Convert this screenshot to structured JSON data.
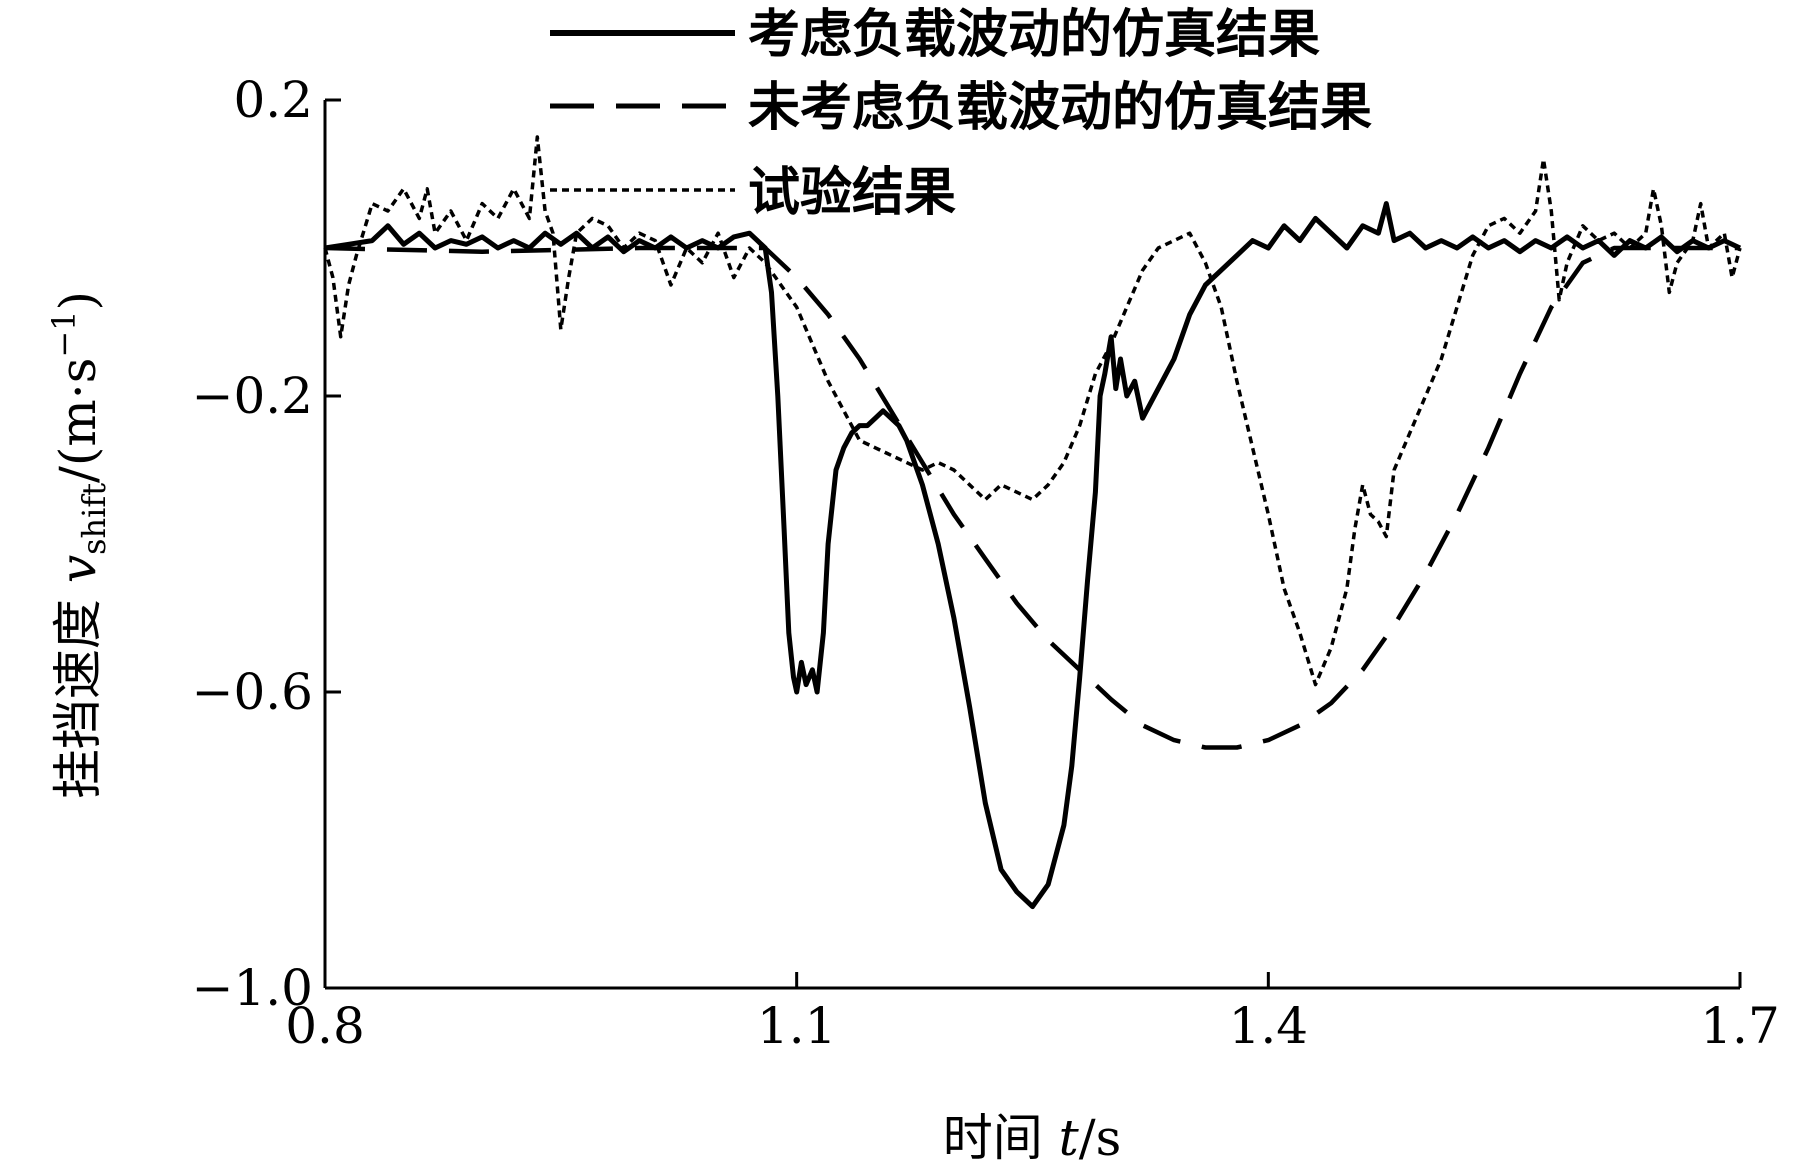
{
  "chart_data": {
    "type": "line",
    "title": "",
    "xlabel": "时间 t/s",
    "xlabel_parts": {
      "prefix": "时间 ",
      "var": "t",
      "suffix": "/s"
    },
    "ylabel": "挂挡速度 v_shift/(m·s^-1)",
    "ylabel_parts": {
      "prefix": "挂挡速度 ",
      "var": "v",
      "sub": "shift",
      "unit_open": "/(m·s",
      "sup": "−1",
      "unit_close": ")"
    },
    "xlim": [
      0.8,
      1.7
    ],
    "ylim": [
      -1.0,
      0.2
    ],
    "x_ticks": [
      0.8,
      1.1,
      1.4,
      1.7
    ],
    "x_tick_labels": [
      "0.8",
      "1.1",
      "1.4",
      "1.7"
    ],
    "y_ticks": [
      0.2,
      -0.2,
      -0.6,
      -1.0
    ],
    "y_tick_labels": [
      "0.2",
      "−0.2",
      "−0.6",
      "−1.0"
    ],
    "legend_placement": "top-center",
    "series": [
      {
        "name": "考虑负载波动的仿真结果",
        "style": "solid",
        "points": [
          [
            0.8,
            0.0
          ],
          [
            0.815,
            0.005
          ],
          [
            0.83,
            0.01
          ],
          [
            0.84,
            0.03
          ],
          [
            0.85,
            0.005
          ],
          [
            0.86,
            0.02
          ],
          [
            0.87,
            0.0
          ],
          [
            0.88,
            0.01
          ],
          [
            0.89,
            0.005
          ],
          [
            0.9,
            0.015
          ],
          [
            0.91,
            0.0
          ],
          [
            0.92,
            0.01
          ],
          [
            0.93,
            0.0
          ],
          [
            0.94,
            0.02
          ],
          [
            0.95,
            0.005
          ],
          [
            0.96,
            0.02
          ],
          [
            0.97,
            0.0
          ],
          [
            0.98,
            0.015
          ],
          [
            0.99,
            -0.005
          ],
          [
            1.0,
            0.01
          ],
          [
            1.01,
            0.0
          ],
          [
            1.02,
            0.015
          ],
          [
            1.03,
            0.0
          ],
          [
            1.04,
            0.01
          ],
          [
            1.05,
            0.0
          ],
          [
            1.06,
            0.015
          ],
          [
            1.07,
            0.02
          ],
          [
            1.075,
            0.01
          ],
          [
            1.08,
            0.0
          ],
          [
            1.084,
            -0.06
          ],
          [
            1.088,
            -0.2
          ],
          [
            1.092,
            -0.38
          ],
          [
            1.095,
            -0.52
          ],
          [
            1.098,
            -0.58
          ],
          [
            1.1,
            -0.6
          ],
          [
            1.103,
            -0.56
          ],
          [
            1.106,
            -0.59
          ],
          [
            1.11,
            -0.57
          ],
          [
            1.113,
            -0.6
          ],
          [
            1.117,
            -0.52
          ],
          [
            1.12,
            -0.4
          ],
          [
            1.125,
            -0.3
          ],
          [
            1.13,
            -0.27
          ],
          [
            1.135,
            -0.25
          ],
          [
            1.14,
            -0.24
          ],
          [
            1.145,
            -0.24
          ],
          [
            1.15,
            -0.23
          ],
          [
            1.155,
            -0.22
          ],
          [
            1.16,
            -0.23
          ],
          [
            1.165,
            -0.24
          ],
          [
            1.17,
            -0.26
          ],
          [
            1.18,
            -0.32
          ],
          [
            1.19,
            -0.4
          ],
          [
            1.2,
            -0.5
          ],
          [
            1.21,
            -0.62
          ],
          [
            1.22,
            -0.75
          ],
          [
            1.23,
            -0.84
          ],
          [
            1.24,
            -0.87
          ],
          [
            1.25,
            -0.89
          ],
          [
            1.26,
            -0.86
          ],
          [
            1.27,
            -0.78
          ],
          [
            1.275,
            -0.7
          ],
          [
            1.28,
            -0.58
          ],
          [
            1.285,
            -0.45
          ],
          [
            1.29,
            -0.33
          ],
          [
            1.293,
            -0.2
          ],
          [
            1.296,
            -0.17
          ],
          [
            1.3,
            -0.12
          ],
          [
            1.303,
            -0.19
          ],
          [
            1.306,
            -0.15
          ],
          [
            1.31,
            -0.2
          ],
          [
            1.315,
            -0.18
          ],
          [
            1.32,
            -0.23
          ],
          [
            1.325,
            -0.21
          ],
          [
            1.33,
            -0.19
          ],
          [
            1.34,
            -0.15
          ],
          [
            1.35,
            -0.09
          ],
          [
            1.36,
            -0.05
          ],
          [
            1.37,
            -0.03
          ],
          [
            1.38,
            -0.01
          ],
          [
            1.39,
            0.01
          ],
          [
            1.4,
            0.0
          ],
          [
            1.41,
            0.03
          ],
          [
            1.42,
            0.01
          ],
          [
            1.43,
            0.04
          ],
          [
            1.44,
            0.02
          ],
          [
            1.45,
            0.0
          ],
          [
            1.46,
            0.03
          ],
          [
            1.47,
            0.02
          ],
          [
            1.475,
            0.06
          ],
          [
            1.48,
            0.01
          ],
          [
            1.49,
            0.02
          ],
          [
            1.5,
            0.0
          ],
          [
            1.51,
            0.01
          ],
          [
            1.52,
            0.0
          ],
          [
            1.53,
            0.015
          ],
          [
            1.54,
            0.0
          ],
          [
            1.55,
            0.01
          ],
          [
            1.56,
            -0.005
          ],
          [
            1.57,
            0.01
          ],
          [
            1.58,
            0.0
          ],
          [
            1.59,
            0.015
          ],
          [
            1.6,
            0.0
          ],
          [
            1.61,
            0.01
          ],
          [
            1.62,
            -0.01
          ],
          [
            1.63,
            0.01
          ],
          [
            1.64,
            0.0
          ],
          [
            1.65,
            0.015
          ],
          [
            1.66,
            -0.005
          ],
          [
            1.67,
            0.01
          ],
          [
            1.68,
            0.0
          ],
          [
            1.69,
            0.01
          ],
          [
            1.7,
            0.0
          ]
        ]
      },
      {
        "name": "未考虑负载波动的仿真结果",
        "style": "dashed",
        "points": [
          [
            0.8,
            0.0
          ],
          [
            0.9,
            -0.005
          ],
          [
            1.0,
            0.0
          ],
          [
            1.08,
            0.0
          ],
          [
            1.1,
            -0.04
          ],
          [
            1.12,
            -0.09
          ],
          [
            1.14,
            -0.15
          ],
          [
            1.16,
            -0.22
          ],
          [
            1.18,
            -0.29
          ],
          [
            1.2,
            -0.36
          ],
          [
            1.22,
            -0.42
          ],
          [
            1.24,
            -0.48
          ],
          [
            1.26,
            -0.53
          ],
          [
            1.28,
            -0.57
          ],
          [
            1.3,
            -0.61
          ],
          [
            1.32,
            -0.645
          ],
          [
            1.34,
            -0.665
          ],
          [
            1.36,
            -0.675
          ],
          [
            1.38,
            -0.675
          ],
          [
            1.4,
            -0.665
          ],
          [
            1.42,
            -0.645
          ],
          [
            1.44,
            -0.615
          ],
          [
            1.46,
            -0.57
          ],
          [
            1.48,
            -0.51
          ],
          [
            1.5,
            -0.44
          ],
          [
            1.52,
            -0.36
          ],
          [
            1.54,
            -0.27
          ],
          [
            1.56,
            -0.17
          ],
          [
            1.58,
            -0.08
          ],
          [
            1.6,
            -0.02
          ],
          [
            1.62,
            0.0
          ],
          [
            1.7,
            0.0
          ]
        ]
      },
      {
        "name": "试验结果",
        "style": "dotted",
        "points": [
          [
            0.8,
            0.0
          ],
          [
            0.805,
            -0.04
          ],
          [
            0.81,
            -0.12
          ],
          [
            0.815,
            -0.05
          ],
          [
            0.82,
            -0.01
          ],
          [
            0.83,
            0.06
          ],
          [
            0.84,
            0.05
          ],
          [
            0.85,
            0.08
          ],
          [
            0.86,
            0.04
          ],
          [
            0.865,
            0.08
          ],
          [
            0.87,
            0.02
          ],
          [
            0.88,
            0.05
          ],
          [
            0.89,
            0.01
          ],
          [
            0.9,
            0.06
          ],
          [
            0.91,
            0.04
          ],
          [
            0.92,
            0.08
          ],
          [
            0.93,
            0.04
          ],
          [
            0.935,
            0.15
          ],
          [
            0.94,
            0.05
          ],
          [
            0.945,
            0.02
          ],
          [
            0.95,
            -0.11
          ],
          [
            0.955,
            -0.04
          ],
          [
            0.96,
            0.02
          ],
          [
            0.97,
            0.04
          ],
          [
            0.98,
            0.03
          ],
          [
            0.99,
            0.0
          ],
          [
            1.0,
            0.02
          ],
          [
            1.01,
            0.01
          ],
          [
            1.02,
            -0.05
          ],
          [
            1.03,
            0.0
          ],
          [
            1.04,
            -0.02
          ],
          [
            1.05,
            0.02
          ],
          [
            1.06,
            -0.04
          ],
          [
            1.07,
            0.0
          ],
          [
            1.08,
            -0.02
          ],
          [
            1.09,
            -0.05
          ],
          [
            1.1,
            -0.08
          ],
          [
            1.11,
            -0.13
          ],
          [
            1.12,
            -0.18
          ],
          [
            1.13,
            -0.22
          ],
          [
            1.14,
            -0.26
          ],
          [
            1.15,
            -0.27
          ],
          [
            1.16,
            -0.28
          ],
          [
            1.17,
            -0.29
          ],
          [
            1.18,
            -0.3
          ],
          [
            1.19,
            -0.29
          ],
          [
            1.2,
            -0.3
          ],
          [
            1.21,
            -0.32
          ],
          [
            1.22,
            -0.34
          ],
          [
            1.23,
            -0.32
          ],
          [
            1.24,
            -0.33
          ],
          [
            1.25,
            -0.34
          ],
          [
            1.26,
            -0.32
          ],
          [
            1.27,
            -0.29
          ],
          [
            1.28,
            -0.24
          ],
          [
            1.29,
            -0.17
          ],
          [
            1.3,
            -0.13
          ],
          [
            1.31,
            -0.08
          ],
          [
            1.32,
            -0.03
          ],
          [
            1.33,
            0.0
          ],
          [
            1.34,
            0.01
          ],
          [
            1.35,
            0.02
          ],
          [
            1.36,
            -0.02
          ],
          [
            1.37,
            -0.08
          ],
          [
            1.38,
            -0.18
          ],
          [
            1.39,
            -0.27
          ],
          [
            1.4,
            -0.36
          ],
          [
            1.41,
            -0.46
          ],
          [
            1.42,
            -0.52
          ],
          [
            1.43,
            -0.59
          ],
          [
            1.44,
            -0.54
          ],
          [
            1.45,
            -0.46
          ],
          [
            1.455,
            -0.38
          ],
          [
            1.46,
            -0.32
          ],
          [
            1.465,
            -0.36
          ],
          [
            1.47,
            -0.37
          ],
          [
            1.475,
            -0.39
          ],
          [
            1.48,
            -0.3
          ],
          [
            1.49,
            -0.25
          ],
          [
            1.5,
            -0.2
          ],
          [
            1.51,
            -0.15
          ],
          [
            1.52,
            -0.08
          ],
          [
            1.53,
            -0.01
          ],
          [
            1.54,
            0.03
          ],
          [
            1.55,
            0.04
          ],
          [
            1.56,
            0.02
          ],
          [
            1.57,
            0.05
          ],
          [
            1.575,
            0.12
          ],
          [
            1.58,
            0.05
          ],
          [
            1.585,
            -0.07
          ],
          [
            1.59,
            -0.02
          ],
          [
            1.6,
            0.03
          ],
          [
            1.61,
            0.01
          ],
          [
            1.62,
            0.02
          ],
          [
            1.63,
            0.0
          ],
          [
            1.64,
            0.02
          ],
          [
            1.645,
            0.08
          ],
          [
            1.65,
            0.03
          ],
          [
            1.655,
            -0.06
          ],
          [
            1.66,
            -0.02
          ],
          [
            1.67,
            0.01
          ],
          [
            1.675,
            0.06
          ],
          [
            1.68,
            0.0
          ],
          [
            1.69,
            0.02
          ],
          [
            1.695,
            -0.04
          ],
          [
            1.7,
            0.0
          ]
        ]
      }
    ]
  }
}
